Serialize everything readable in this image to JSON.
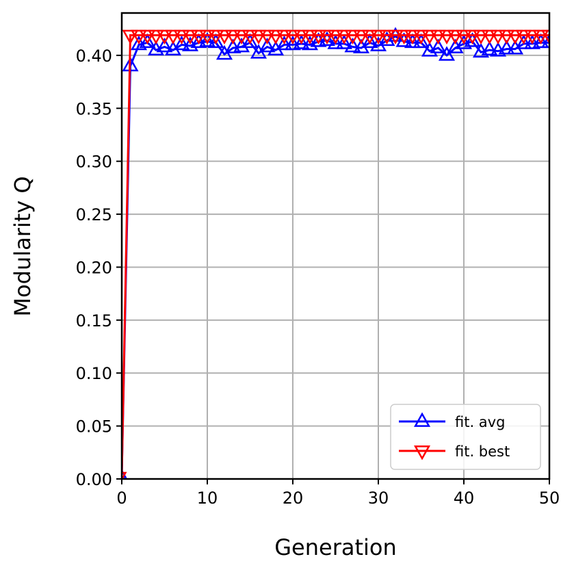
{
  "chart_data": {
    "type": "line",
    "title": "",
    "xlabel": "Generation",
    "ylabel": "Modularity Q",
    "xlim": [
      0,
      50
    ],
    "ylim": [
      0,
      0.44
    ],
    "xticks": [
      0,
      10,
      20,
      30,
      40,
      50
    ],
    "yticks": [
      0.0,
      0.05,
      0.1,
      0.15,
      0.2,
      0.25,
      0.3,
      0.35,
      0.4
    ],
    "xtick_labels": [
      "0",
      "10",
      "20",
      "30",
      "40",
      "50"
    ],
    "ytick_labels": [
      "0.00",
      "0.05",
      "0.10",
      "0.15",
      "0.20",
      "0.25",
      "0.30",
      "0.35",
      "0.40"
    ],
    "grid": true,
    "legend_position": "bottom-right",
    "x": [
      0,
      1,
      2,
      3,
      4,
      5,
      6,
      7,
      8,
      9,
      10,
      11,
      12,
      13,
      14,
      15,
      16,
      17,
      18,
      19,
      20,
      21,
      22,
      23,
      24,
      25,
      26,
      27,
      28,
      29,
      30,
      31,
      32,
      33,
      34,
      35,
      36,
      37,
      38,
      39,
      40,
      41,
      42,
      43,
      44,
      45,
      46,
      47,
      48,
      49,
      50
    ],
    "series": [
      {
        "name": "fit. avg",
        "color": "#0000ff",
        "marker": "triangle-up",
        "values": [
          0.004,
          0.39,
          0.41,
          0.412,
          0.405,
          0.408,
          0.405,
          0.41,
          0.409,
          0.412,
          0.413,
          0.412,
          0.401,
          0.407,
          0.408,
          0.412,
          0.402,
          0.408,
          0.405,
          0.41,
          0.41,
          0.411,
          0.41,
          0.413,
          0.414,
          0.411,
          0.411,
          0.408,
          0.407,
          0.412,
          0.409,
          0.414,
          0.418,
          0.413,
          0.412,
          0.412,
          0.404,
          0.407,
          0.4,
          0.407,
          0.411,
          0.413,
          0.403,
          0.405,
          0.404,
          0.406,
          0.406,
          0.411,
          0.411,
          0.412,
          0.412
        ]
      },
      {
        "name": "fit. best",
        "color": "#ff0000",
        "marker": "triangle-down",
        "values": [
          0.0035,
          0.419,
          0.419,
          0.419,
          0.419,
          0.419,
          0.419,
          0.419,
          0.419,
          0.419,
          0.419,
          0.419,
          0.419,
          0.419,
          0.419,
          0.419,
          0.419,
          0.419,
          0.419,
          0.419,
          0.419,
          0.419,
          0.419,
          0.419,
          0.419,
          0.419,
          0.419,
          0.419,
          0.419,
          0.419,
          0.419,
          0.419,
          0.419,
          0.419,
          0.419,
          0.419,
          0.419,
          0.419,
          0.419,
          0.419,
          0.419,
          0.419,
          0.419,
          0.419,
          0.419,
          0.419,
          0.419,
          0.419,
          0.419,
          0.419,
          0.419
        ]
      }
    ]
  }
}
